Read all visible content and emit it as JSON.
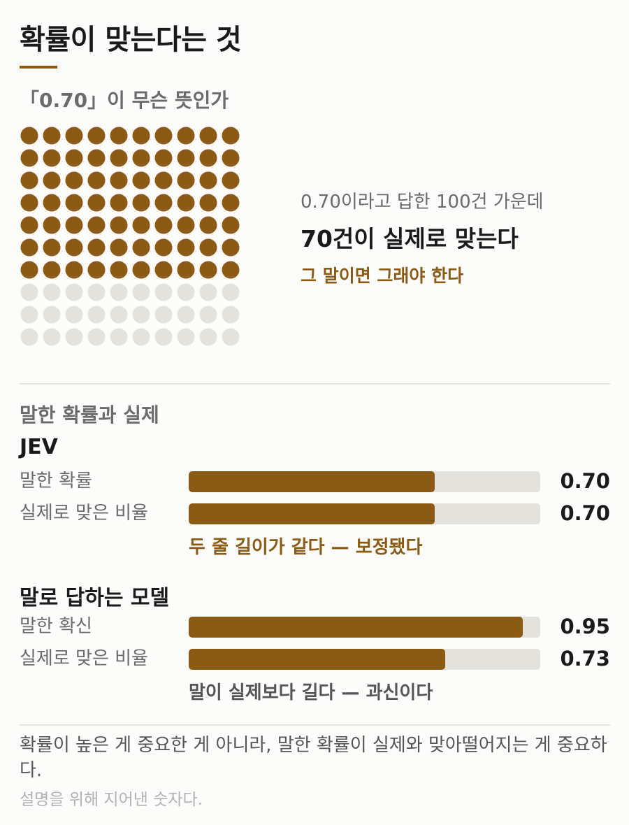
{
  "header": {
    "title": "확률이 맞는다는 것",
    "subtitle": "「0.70」이 무슨 뜻인가"
  },
  "dot_grid": {
    "total": 100,
    "filled": 70,
    "columns": 10,
    "filled_color": "#8b5a14",
    "empty_color": "#e4e2dd"
  },
  "callout": {
    "lead": "0.70이라고 답한 100건 가운데",
    "main": "70건이 실제로 맞는다",
    "note": "그 말이면 그래야 한다"
  },
  "comparison": {
    "section_title": "말한 확률과 실제",
    "groups": [
      {
        "name": "JEV",
        "rows": [
          {
            "label": "말한 확률",
            "value": 0.7,
            "value_text": "0.70"
          },
          {
            "label": "실제로 맞은 비율",
            "value": 0.7,
            "value_text": "0.70"
          }
        ],
        "note": "두 줄 길이가 같다 — 보정됐다"
      },
      {
        "name": "말로 답하는 모델",
        "rows": [
          {
            "label": "말한 확신",
            "value": 0.95,
            "value_text": "0.95"
          },
          {
            "label": "실제로 맞은 비율",
            "value": 0.73,
            "value_text": "0.73"
          }
        ],
        "note": "말이 실제보다 길다 — 과신이다"
      }
    ]
  },
  "footer": {
    "text": "확률이 높은 게 중요한 게 아니라, 말한 확률이 실제와 맞아떨어지는 게 중요하다.",
    "footnote": "설명을 위해 지어낸 숫자다."
  },
  "colors": {
    "accent": "#8b5a14",
    "track": "#e4e2dd",
    "text": "#1a1a1a",
    "muted": "#6b6b6b"
  }
}
